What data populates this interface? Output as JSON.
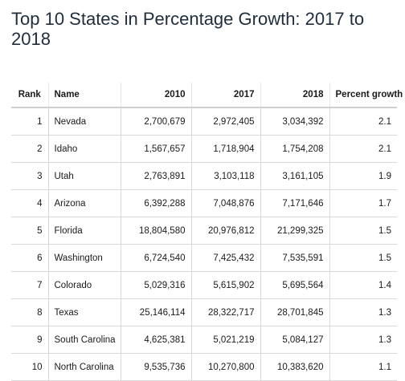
{
  "title": "Top 10 States in Percentage Growth: 2017 to 2018",
  "chart_data": {
    "type": "table",
    "title": "Top 10 States in Percentage Growth: 2017 to 2018",
    "columns": [
      "Rank",
      "Name",
      "2010",
      "2017",
      "2018",
      "Percent growth"
    ],
    "rows": [
      {
        "rank": "1",
        "name": "Nevada",
        "y2010": "2,700,679",
        "y2017": "2,972,405",
        "y2018": "3,034,392",
        "growth": "2.1"
      },
      {
        "rank": "2",
        "name": "Idaho",
        "y2010": "1,567,657",
        "y2017": "1,718,904",
        "y2018": "1,754,208",
        "growth": "2.1"
      },
      {
        "rank": "3",
        "name": "Utah",
        "y2010": "2,763,891",
        "y2017": "3,103,118",
        "y2018": "3,161,105",
        "growth": "1.9"
      },
      {
        "rank": "4",
        "name": "Arizona",
        "y2010": "6,392,288",
        "y2017": "7,048,876",
        "y2018": "7,171,646",
        "growth": "1.7"
      },
      {
        "rank": "5",
        "name": "Florida",
        "y2010": "18,804,580",
        "y2017": "20,976,812",
        "y2018": "21,299,325",
        "growth": "1.5"
      },
      {
        "rank": "6",
        "name": "Washington",
        "y2010": "6,724,540",
        "y2017": "7,425,432",
        "y2018": "7,535,591",
        "growth": "1.5"
      },
      {
        "rank": "7",
        "name": "Colorado",
        "y2010": "5,029,316",
        "y2017": "5,615,902",
        "y2018": "5,695,564",
        "growth": "1.4"
      },
      {
        "rank": "8",
        "name": "Texas",
        "y2010": "25,146,114",
        "y2017": "28,322,717",
        "y2018": "28,701,845",
        "growth": "1.3"
      },
      {
        "rank": "9",
        "name": "South Carolina",
        "y2010": "4,625,381",
        "y2017": "5,021,219",
        "y2018": "5,084,127",
        "growth": "1.3"
      },
      {
        "rank": "10",
        "name": "North Carolina",
        "y2010": "9,535,736",
        "y2017": "10,270,800",
        "y2018": "10,383,620",
        "growth": "1.1"
      }
    ]
  }
}
